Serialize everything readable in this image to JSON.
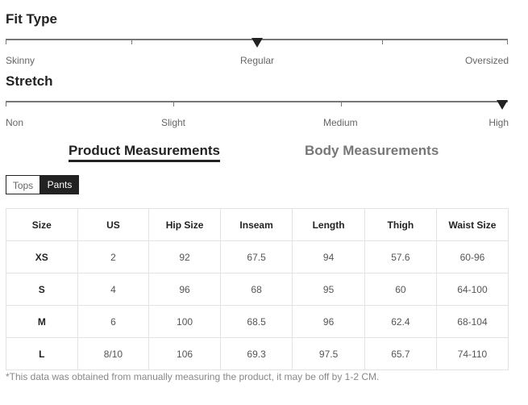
{
  "fit_type": {
    "title": "Fit Type",
    "labels": [
      "Skinny",
      "Regular",
      "Oversized"
    ],
    "selected": "Regular"
  },
  "stretch": {
    "title": "Stretch",
    "labels": [
      "Non",
      "Slight",
      "Medium",
      "High"
    ],
    "selected": "High"
  },
  "tabs": {
    "product": "Product Measurements",
    "body": "Body Measurements",
    "active": "Product Measurements"
  },
  "category": {
    "tops": "Tops",
    "pants": "Pants",
    "active": "Pants"
  },
  "table": {
    "headers": [
      "Size",
      "US",
      "Hip Size",
      "Inseam",
      "Length",
      "Thigh",
      "Waist Size"
    ],
    "rows": [
      [
        "XS",
        "2",
        "92",
        "67.5",
        "94",
        "57.6",
        "60-96"
      ],
      [
        "S",
        "4",
        "96",
        "68",
        "95",
        "60",
        "64-100"
      ],
      [
        "M",
        "6",
        "100",
        "68.5",
        "96",
        "62.4",
        "68-104"
      ],
      [
        "L",
        "8/10",
        "106",
        "69.3",
        "97.5",
        "65.7",
        "74-110"
      ]
    ]
  },
  "note": "*This data was obtained from manually measuring the product, it may be off by 1-2 CM."
}
